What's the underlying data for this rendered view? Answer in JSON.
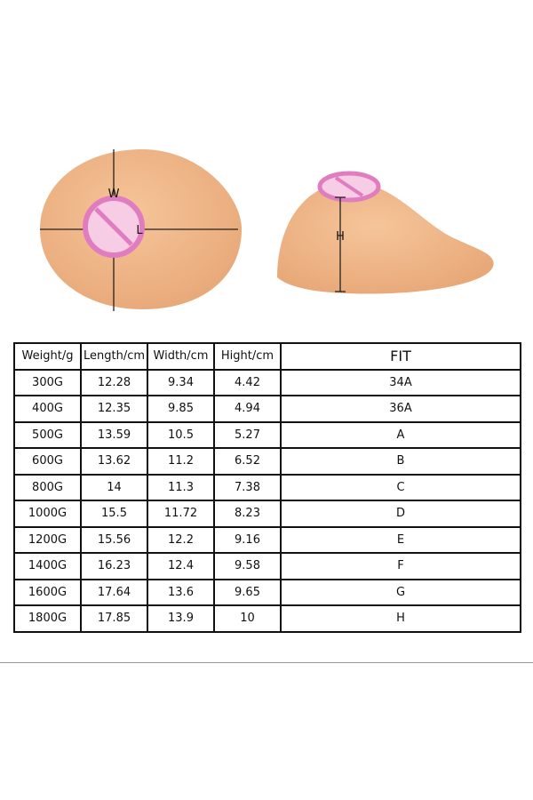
{
  "figure": {
    "labels": {
      "width": "W",
      "length": "L",
      "height": "H"
    }
  },
  "table": {
    "header": [
      "Weight/g",
      "Length/cm",
      "Width/cm",
      "Hight/cm",
      "FIT"
    ],
    "rows": [
      [
        "300G",
        "12.28",
        "9.34",
        "4.42",
        "34A"
      ],
      [
        "400G",
        "12.35",
        "9.85",
        "4.94",
        "36A"
      ],
      [
        "500G",
        "13.59",
        "10.5",
        "5.27",
        "A"
      ],
      [
        "600G",
        "13.62",
        "11.2",
        "6.52",
        "B"
      ],
      [
        "800G",
        "14",
        "11.3",
        "7.38",
        "C"
      ],
      [
        "1000G",
        "15.5",
        "11.72",
        "8.23",
        "D"
      ],
      [
        "1200G",
        "15.56",
        "12.2",
        "9.16",
        "E"
      ],
      [
        "1400G",
        "16.23",
        "12.4",
        "9.58",
        "F"
      ],
      [
        "1600G",
        "17.64",
        "13.6",
        "9.65",
        "G"
      ],
      [
        "1800G",
        "17.85",
        "13.9",
        "10",
        "H"
      ]
    ]
  }
}
